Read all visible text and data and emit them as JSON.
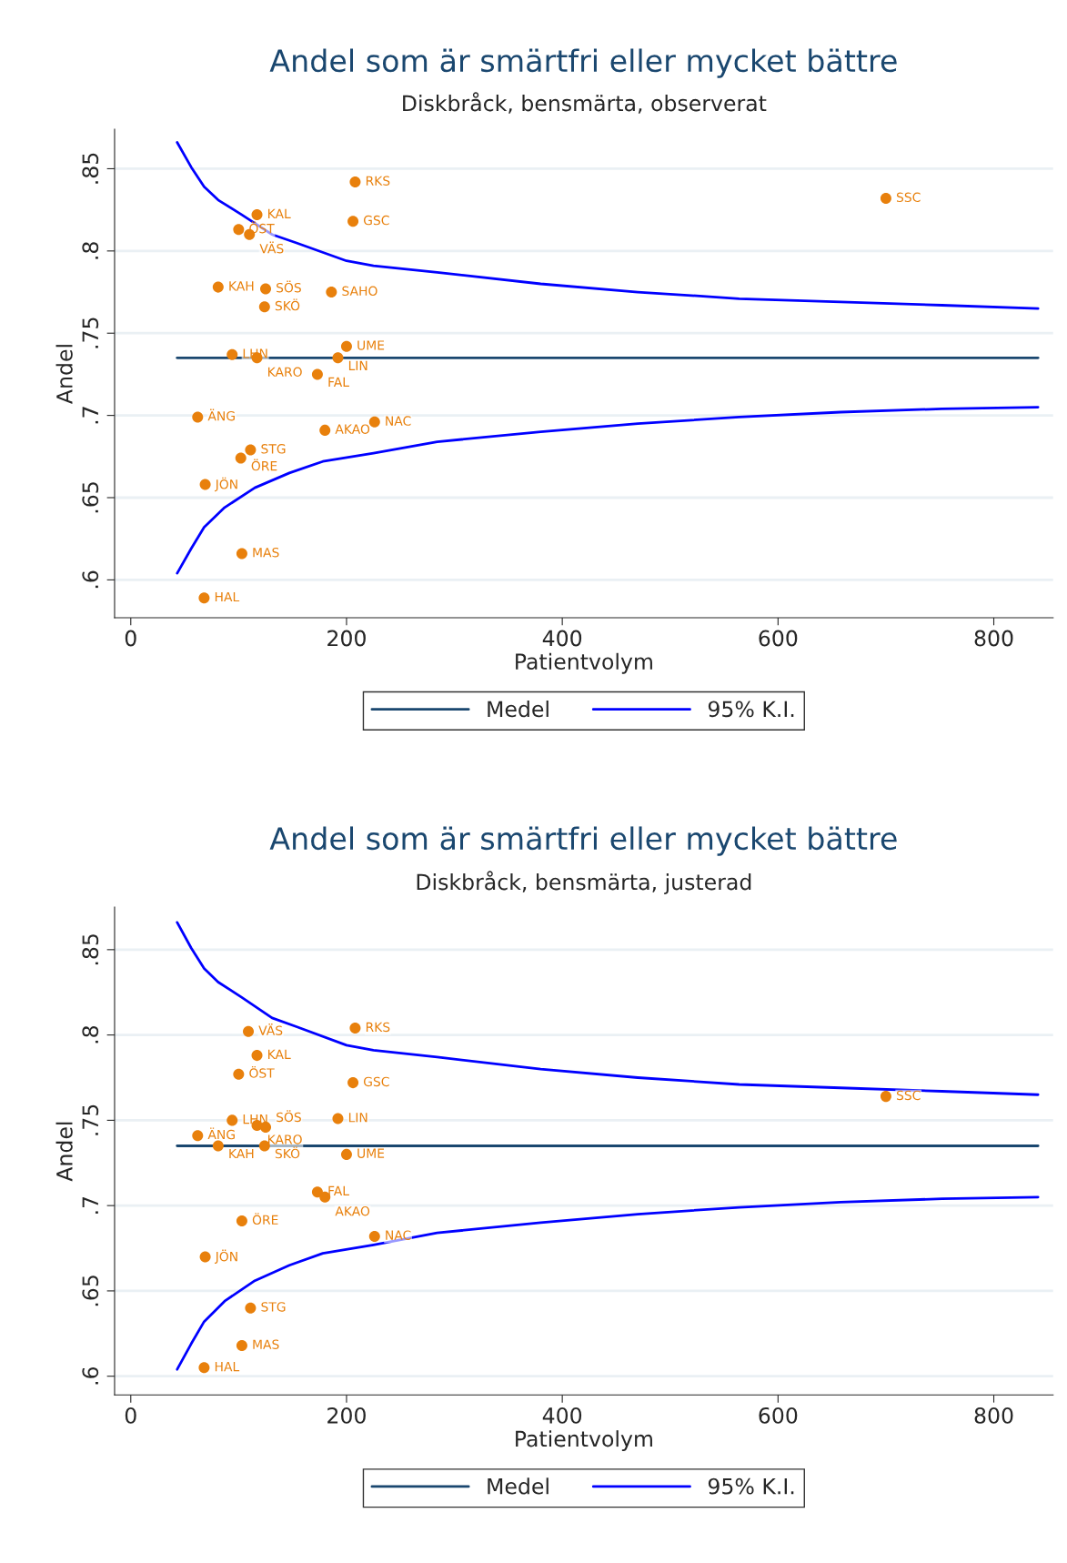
{
  "chart_data": [
    {
      "type": "scatter",
      "title": "Andel som är smärtfri eller mycket bättre",
      "subtitle": "Diskbråck, bensmärta, observerat",
      "xlabel": "Patientvolym",
      "ylabel": "Andel",
      "xlim": [
        -15,
        855
      ],
      "ylim": [
        0.577,
        0.874
      ],
      "xticks": [
        0,
        200,
        400,
        600,
        800
      ],
      "yticks": [
        {
          "value": 0.6,
          "label": ".6"
        },
        {
          "value": 0.65,
          "label": ".65"
        },
        {
          "value": 0.7,
          "label": ".7"
        },
        {
          "value": 0.75,
          "label": ".75"
        },
        {
          "value": 0.8,
          "label": ".8"
        },
        {
          "value": 0.85,
          "label": ".85"
        }
      ],
      "grid": "y",
      "legend": "bottom",
      "series": [
        {
          "type": "line",
          "name": "Medel",
          "color": "#1a476f",
          "x": [
            43,
            841
          ],
          "values": [
            0.735,
            0.735
          ]
        },
        {
          "type": "line",
          "name": "95% K.I.",
          "color": "#0000ff",
          "x": [
            43,
            56,
            68,
            81,
            103,
            131,
            153,
            200,
            225,
            284,
            380,
            470,
            564,
            658,
            752,
            841
          ],
          "values": [
            0.866,
            0.851,
            0.839,
            0.831,
            0.822,
            0.81,
            0.805,
            0.794,
            0.791,
            0.787,
            0.78,
            0.775,
            0.771,
            0.769,
            0.767,
            0.765
          ]
        },
        {
          "type": "line",
          "color": "#0000ff",
          "x": [
            43,
            56,
            68,
            87,
            115,
            147,
            178,
            225,
            284,
            380,
            470,
            564,
            658,
            752,
            841
          ],
          "values": [
            0.604,
            0.619,
            0.632,
            0.644,
            0.656,
            0.665,
            0.672,
            0.677,
            0.684,
            0.69,
            0.695,
            0.699,
            0.702,
            0.704,
            0.705
          ]
        },
        {
          "color": "#e8800c",
          "marker": "circle",
          "x": [
            208,
            700,
            117,
            206,
            100,
            110,
            81,
            125,
            186,
            124,
            200,
            94,
            117,
            192,
            173,
            62,
            180,
            226,
            111,
            102,
            69,
            103,
            68
          ],
          "values": [
            0.842,
            0.832,
            0.822,
            0.818,
            0.813,
            0.81,
            0.778,
            0.777,
            0.775,
            0.766,
            0.742,
            0.737,
            0.735,
            0.735,
            0.725,
            0.699,
            0.691,
            0.696,
            0.679,
            0.674,
            0.658,
            0.616,
            0.589
          ]
        }
      ],
      "annotations": [
        {
          "text": "RKS",
          "x": 208,
          "y": 0.842
        },
        {
          "text": "SSC",
          "x": 700,
          "y": 0.832
        },
        {
          "text": "KAL",
          "x": 117,
          "y": 0.822
        },
        {
          "text": "GSC",
          "x": 206,
          "y": 0.818
        },
        {
          "text": "ÖST",
          "x": 100,
          "y": 0.813
        },
        {
          "text": "VÄS",
          "x": 110,
          "y": 0.81
        },
        {
          "text": "KAH",
          "x": 81,
          "y": 0.778
        },
        {
          "text": "SÖS",
          "x": 125,
          "y": 0.777
        },
        {
          "text": "SAHO",
          "x": 186,
          "y": 0.775
        },
        {
          "text": "SKÖ",
          "x": 124,
          "y": 0.766
        },
        {
          "text": "UME",
          "x": 200,
          "y": 0.742
        },
        {
          "text": "LHN",
          "x": 94,
          "y": 0.737
        },
        {
          "text": "KARO",
          "x": 117,
          "y": 0.735
        },
        {
          "text": "LIN",
          "x": 192,
          "y": 0.735
        },
        {
          "text": "FAL",
          "x": 173,
          "y": 0.725
        },
        {
          "text": "ÄNG",
          "x": 62,
          "y": 0.699
        },
        {
          "text": "AKAO",
          "x": 180,
          "y": 0.691
        },
        {
          "text": "NAC",
          "x": 226,
          "y": 0.696
        },
        {
          "text": "STG",
          "x": 111,
          "y": 0.679
        },
        {
          "text": "ÖRE",
          "x": 102,
          "y": 0.674
        },
        {
          "text": "JÖN",
          "x": 69,
          "y": 0.658
        },
        {
          "text": "MAS",
          "x": 103,
          "y": 0.616
        },
        {
          "text": "HAL",
          "x": 68,
          "y": 0.589
        }
      ]
    },
    {
      "type": "scatter",
      "title": "Andel som är smärtfri eller mycket bättre",
      "subtitle": "Diskbråck, bensmärta, justerad",
      "xlabel": "Patientvolym",
      "ylabel": "Andel",
      "xlim": [
        -15,
        855
      ],
      "ylim": [
        0.589,
        0.875
      ],
      "xticks": [
        0,
        200,
        400,
        600,
        800
      ],
      "yticks": [
        {
          "value": 0.6,
          "label": ".6"
        },
        {
          "value": 0.65,
          "label": ".65"
        },
        {
          "value": 0.7,
          "label": ".7"
        },
        {
          "value": 0.75,
          "label": ".75"
        },
        {
          "value": 0.8,
          "label": ".8"
        },
        {
          "value": 0.85,
          "label": ".85"
        }
      ],
      "grid": "y",
      "legend": "bottom",
      "series": [
        {
          "type": "line",
          "name": "Medel",
          "color": "#1a476f",
          "x": [
            43,
            841
          ],
          "values": [
            0.735,
            0.735
          ]
        },
        {
          "type": "line",
          "name": "95% K.I.",
          "color": "#0000ff",
          "x": [
            43,
            56,
            68,
            81,
            103,
            131,
            153,
            200,
            225,
            284,
            380,
            470,
            564,
            658,
            752,
            841
          ],
          "values": [
            0.866,
            0.851,
            0.839,
            0.831,
            0.822,
            0.81,
            0.805,
            0.794,
            0.791,
            0.787,
            0.78,
            0.775,
            0.771,
            0.769,
            0.767,
            0.765
          ]
        },
        {
          "type": "line",
          "color": "#0000ff",
          "x": [
            43,
            56,
            68,
            87,
            115,
            147,
            178,
            225,
            284,
            380,
            470,
            564,
            658,
            752,
            841
          ],
          "values": [
            0.604,
            0.619,
            0.632,
            0.644,
            0.656,
            0.665,
            0.672,
            0.677,
            0.684,
            0.69,
            0.695,
            0.699,
            0.702,
            0.704,
            0.705
          ]
        },
        {
          "color": "#e8800c",
          "marker": "circle",
          "x": [
            109,
            208,
            117,
            100,
            206,
            94,
            192,
            117,
            125,
            62,
            81,
            124,
            200,
            173,
            180,
            103,
            226,
            69,
            111,
            103,
            68,
            700
          ],
          "values": [
            0.802,
            0.804,
            0.788,
            0.777,
            0.772,
            0.75,
            0.751,
            0.747,
            0.746,
            0.741,
            0.735,
            0.735,
            0.73,
            0.708,
            0.705,
            0.691,
            0.682,
            0.67,
            0.64,
            0.618,
            0.605,
            0.764
          ]
        }
      ],
      "annotations": [
        {
          "text": "VÄS",
          "x": 109,
          "y": 0.802
        },
        {
          "text": "RKS",
          "x": 208,
          "y": 0.804
        },
        {
          "text": "KAL",
          "x": 117,
          "y": 0.788
        },
        {
          "text": "ÖST",
          "x": 100,
          "y": 0.777
        },
        {
          "text": "GSC",
          "x": 206,
          "y": 0.772
        },
        {
          "text": "LHN",
          "x": 94,
          "y": 0.75
        },
        {
          "text": "LIN",
          "x": 192,
          "y": 0.751
        },
        {
          "text": "KARO",
          "x": 117,
          "y": 0.747
        },
        {
          "text": "SÖS",
          "x": 125,
          "y": 0.746
        },
        {
          "text": "ÄNG",
          "x": 62,
          "y": 0.741
        },
        {
          "text": "KAH",
          "x": 81,
          "y": 0.735
        },
        {
          "text": "SKÖ",
          "x": 124,
          "y": 0.735
        },
        {
          "text": "UME",
          "x": 200,
          "y": 0.73
        },
        {
          "text": "FAL",
          "x": 173,
          "y": 0.708
        },
        {
          "text": "AKAO",
          "x": 180,
          "y": 0.705
        },
        {
          "text": "ÖRE",
          "x": 103,
          "y": 0.691
        },
        {
          "text": "NAC",
          "x": 226,
          "y": 0.682
        },
        {
          "text": "JÖN",
          "x": 69,
          "y": 0.67
        },
        {
          "text": "STG",
          "x": 111,
          "y": 0.64
        },
        {
          "text": "MAS",
          "x": 103,
          "y": 0.618
        },
        {
          "text": "HAL",
          "x": 68,
          "y": 0.605
        },
        {
          "text": "SSC",
          "x": 700,
          "y": 0.764
        }
      ]
    }
  ]
}
